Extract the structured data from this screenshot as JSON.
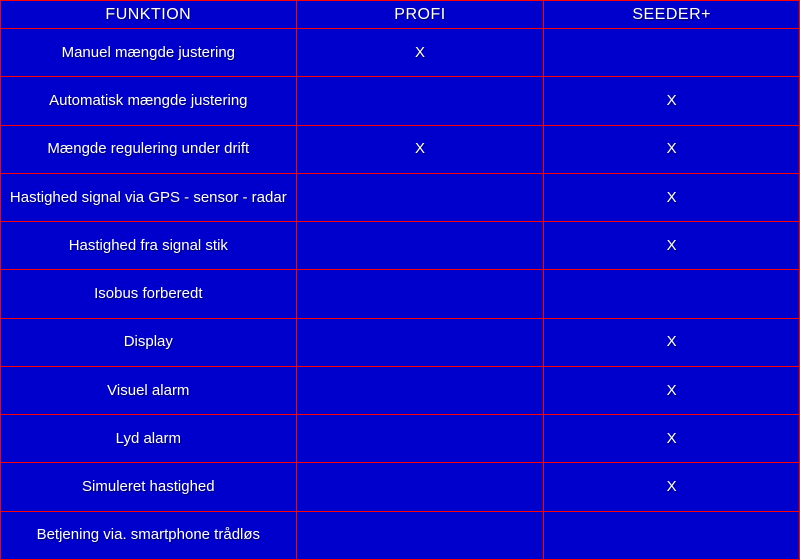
{
  "table": {
    "type": "table",
    "background_color": "#0000cc",
    "border_color": "#ff0000",
    "text_color": "#ffffff",
    "header_fontsize": 16,
    "cell_fontsize": 15,
    "mark_symbol": "X",
    "columns": [
      {
        "key": "funktion",
        "label": "FUNKTION",
        "width_pct": 37,
        "align": "center"
      },
      {
        "key": "profi",
        "label": "PROFI",
        "width_pct": 31,
        "align": "center"
      },
      {
        "key": "seeder",
        "label": "SEEDER+",
        "width_pct": 32,
        "align": "center"
      }
    ],
    "rows": [
      {
        "funktion": "Manuel mængde justering",
        "profi": "X",
        "seeder": ""
      },
      {
        "funktion": "Automatisk mængde justering",
        "profi": "",
        "seeder": "X"
      },
      {
        "funktion": "Mængde regulering under drift",
        "profi": "X",
        "seeder": "X"
      },
      {
        "funktion": "Hastighed signal via GPS - sensor - radar",
        "profi": "",
        "seeder": "X"
      },
      {
        "funktion": "Hastighed fra signal stik",
        "profi": "",
        "seeder": "X"
      },
      {
        "funktion": "Isobus forberedt",
        "profi": "",
        "seeder": ""
      },
      {
        "funktion": "Display",
        "profi": "",
        "seeder": "X"
      },
      {
        "funktion": "Visuel alarm",
        "profi": "",
        "seeder": "X"
      },
      {
        "funktion": "Lyd alarm",
        "profi": "",
        "seeder": "X"
      },
      {
        "funktion": "Simuleret hastighed",
        "profi": "",
        "seeder": "X"
      },
      {
        "funktion": "Betjening  via. smartphone trådløs",
        "profi": "",
        "seeder": ""
      }
    ]
  }
}
